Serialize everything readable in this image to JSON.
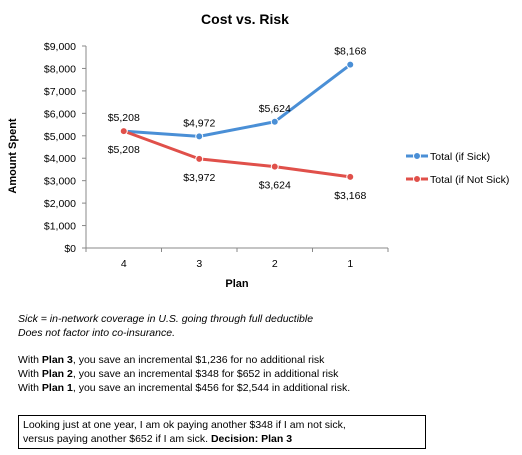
{
  "chart_data": {
    "type": "line",
    "title": "Cost vs. Risk",
    "xlabel": "Plan",
    "ylabel": "Amount Spent",
    "categories": [
      "4",
      "3",
      "2",
      "1"
    ],
    "ylim": [
      0,
      9000
    ],
    "yticks": [
      "$0",
      "$1,000",
      "$2,000",
      "$3,000",
      "$4,000",
      "$5,000",
      "$6,000",
      "$7,000",
      "$8,000",
      "$9,000"
    ],
    "legend_position": "right",
    "series": [
      {
        "name": "Total (if Sick)",
        "color": "#4a8fd6",
        "values": [
          5208,
          4972,
          5624,
          8168
        ],
        "labels": [
          "$5,208",
          "$4,972",
          "$5,624",
          "$8,168"
        ]
      },
      {
        "name": "Total (if Not Sick)",
        "color": "#e0504a",
        "values": [
          5208,
          3972,
          3624,
          3168
        ],
        "labels": [
          "$5,208",
          "$3,972",
          "$3,624",
          "$3,168"
        ]
      }
    ]
  },
  "notes": {
    "sick_definition": "Sick = in-network coverage in U.S. going through full deductible",
    "coinsurance_note": "Does not factor into co-insurance.",
    "plan3_prefix": "With ",
    "plan3_name": "Plan 3",
    "plan3_text": ", you save an incremental $1,236 for no additional risk",
    "plan2_prefix": "With ",
    "plan2_name": "Plan 2",
    "plan2_text": ", you save an incremental $348 for $652 in additional risk",
    "plan1_prefix": "With ",
    "plan1_name": "Plan 1",
    "plan1_text": ", you save an incremental $456 for $2,544 in additional risk."
  },
  "decision": {
    "line1": "Looking just at one year, I am ok paying another $348 if I am not sick,",
    "line2": "versus paying another $652 if I am sick. ",
    "label": "Decision: Plan 3"
  }
}
